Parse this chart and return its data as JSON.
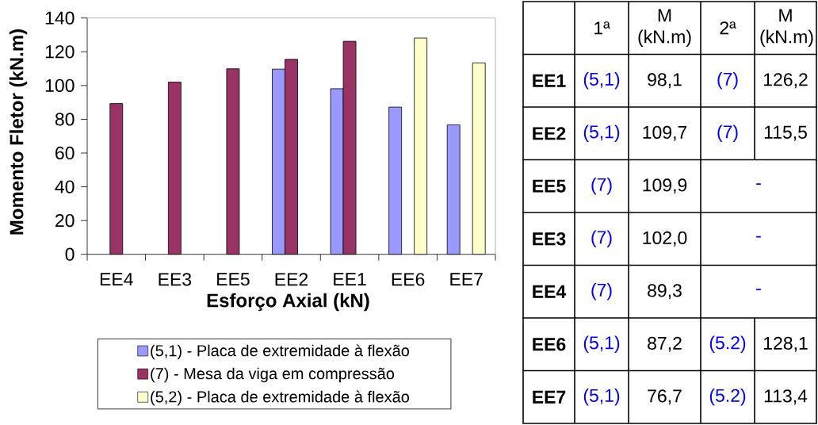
{
  "chart_data": [
    {
      "type": "bar",
      "xlabel": "Esforço Axial (kN)",
      "ylabel": "Momento Fletor (kN.m)",
      "categories": [
        "EE4",
        "EE3",
        "EE5",
        "EE2",
        "EE1",
        "EE6",
        "EE7"
      ],
      "series": [
        {
          "name": "(5,1) - Placa de extremidade à flexão",
          "color": "#9999ff",
          "values": [
            null,
            null,
            null,
            109.7,
            98.1,
            87.2,
            76.7
          ]
        },
        {
          "name": "(7) - Mesa da viga em compressão",
          "color": "#993366",
          "values": [
            89.3,
            102.0,
            109.9,
            115.5,
            126.2,
            null,
            null
          ]
        },
        {
          "name": "(5,2) - Placa de extremidade à flexão",
          "color": "#ffffcc",
          "values": [
            null,
            null,
            null,
            null,
            null,
            128.1,
            113.4
          ]
        }
      ],
      "ylim": [
        0,
        140
      ],
      "yticks": [
        0,
        20,
        40,
        60,
        80,
        100,
        120,
        140
      ],
      "legend": "bottom"
    },
    {
      "type": "other",
      "categories": [
        "1ª",
        "M (kN.m)",
        "2ª",
        "M (kN.m)"
      ],
      "y_categories": [
        "EE1",
        "EE2",
        "EE5",
        "EE3",
        "EE4",
        "EE6",
        "EE7"
      ],
      "cell_labels": [
        [
          "(5,1)",
          "98,1",
          "(7)",
          "126,2"
        ],
        [
          "(5,1)",
          "109,7",
          "(7)",
          "115,5"
        ],
        [
          "(7)",
          "109,9",
          "-",
          null
        ],
        [
          "(7)",
          "102,0",
          "-",
          null
        ],
        [
          "(7)",
          "89,3",
          "-",
          null
        ],
        [
          "(5,1)",
          "87,2",
          "(5.2)",
          "128,1"
        ],
        [
          "(5,1)",
          "76,7",
          "(5.2)",
          "113,4"
        ]
      ],
      "colors": [
        "#0000ff",
        "#000000",
        "#0000ff",
        "#000000"
      ]
    }
  ]
}
